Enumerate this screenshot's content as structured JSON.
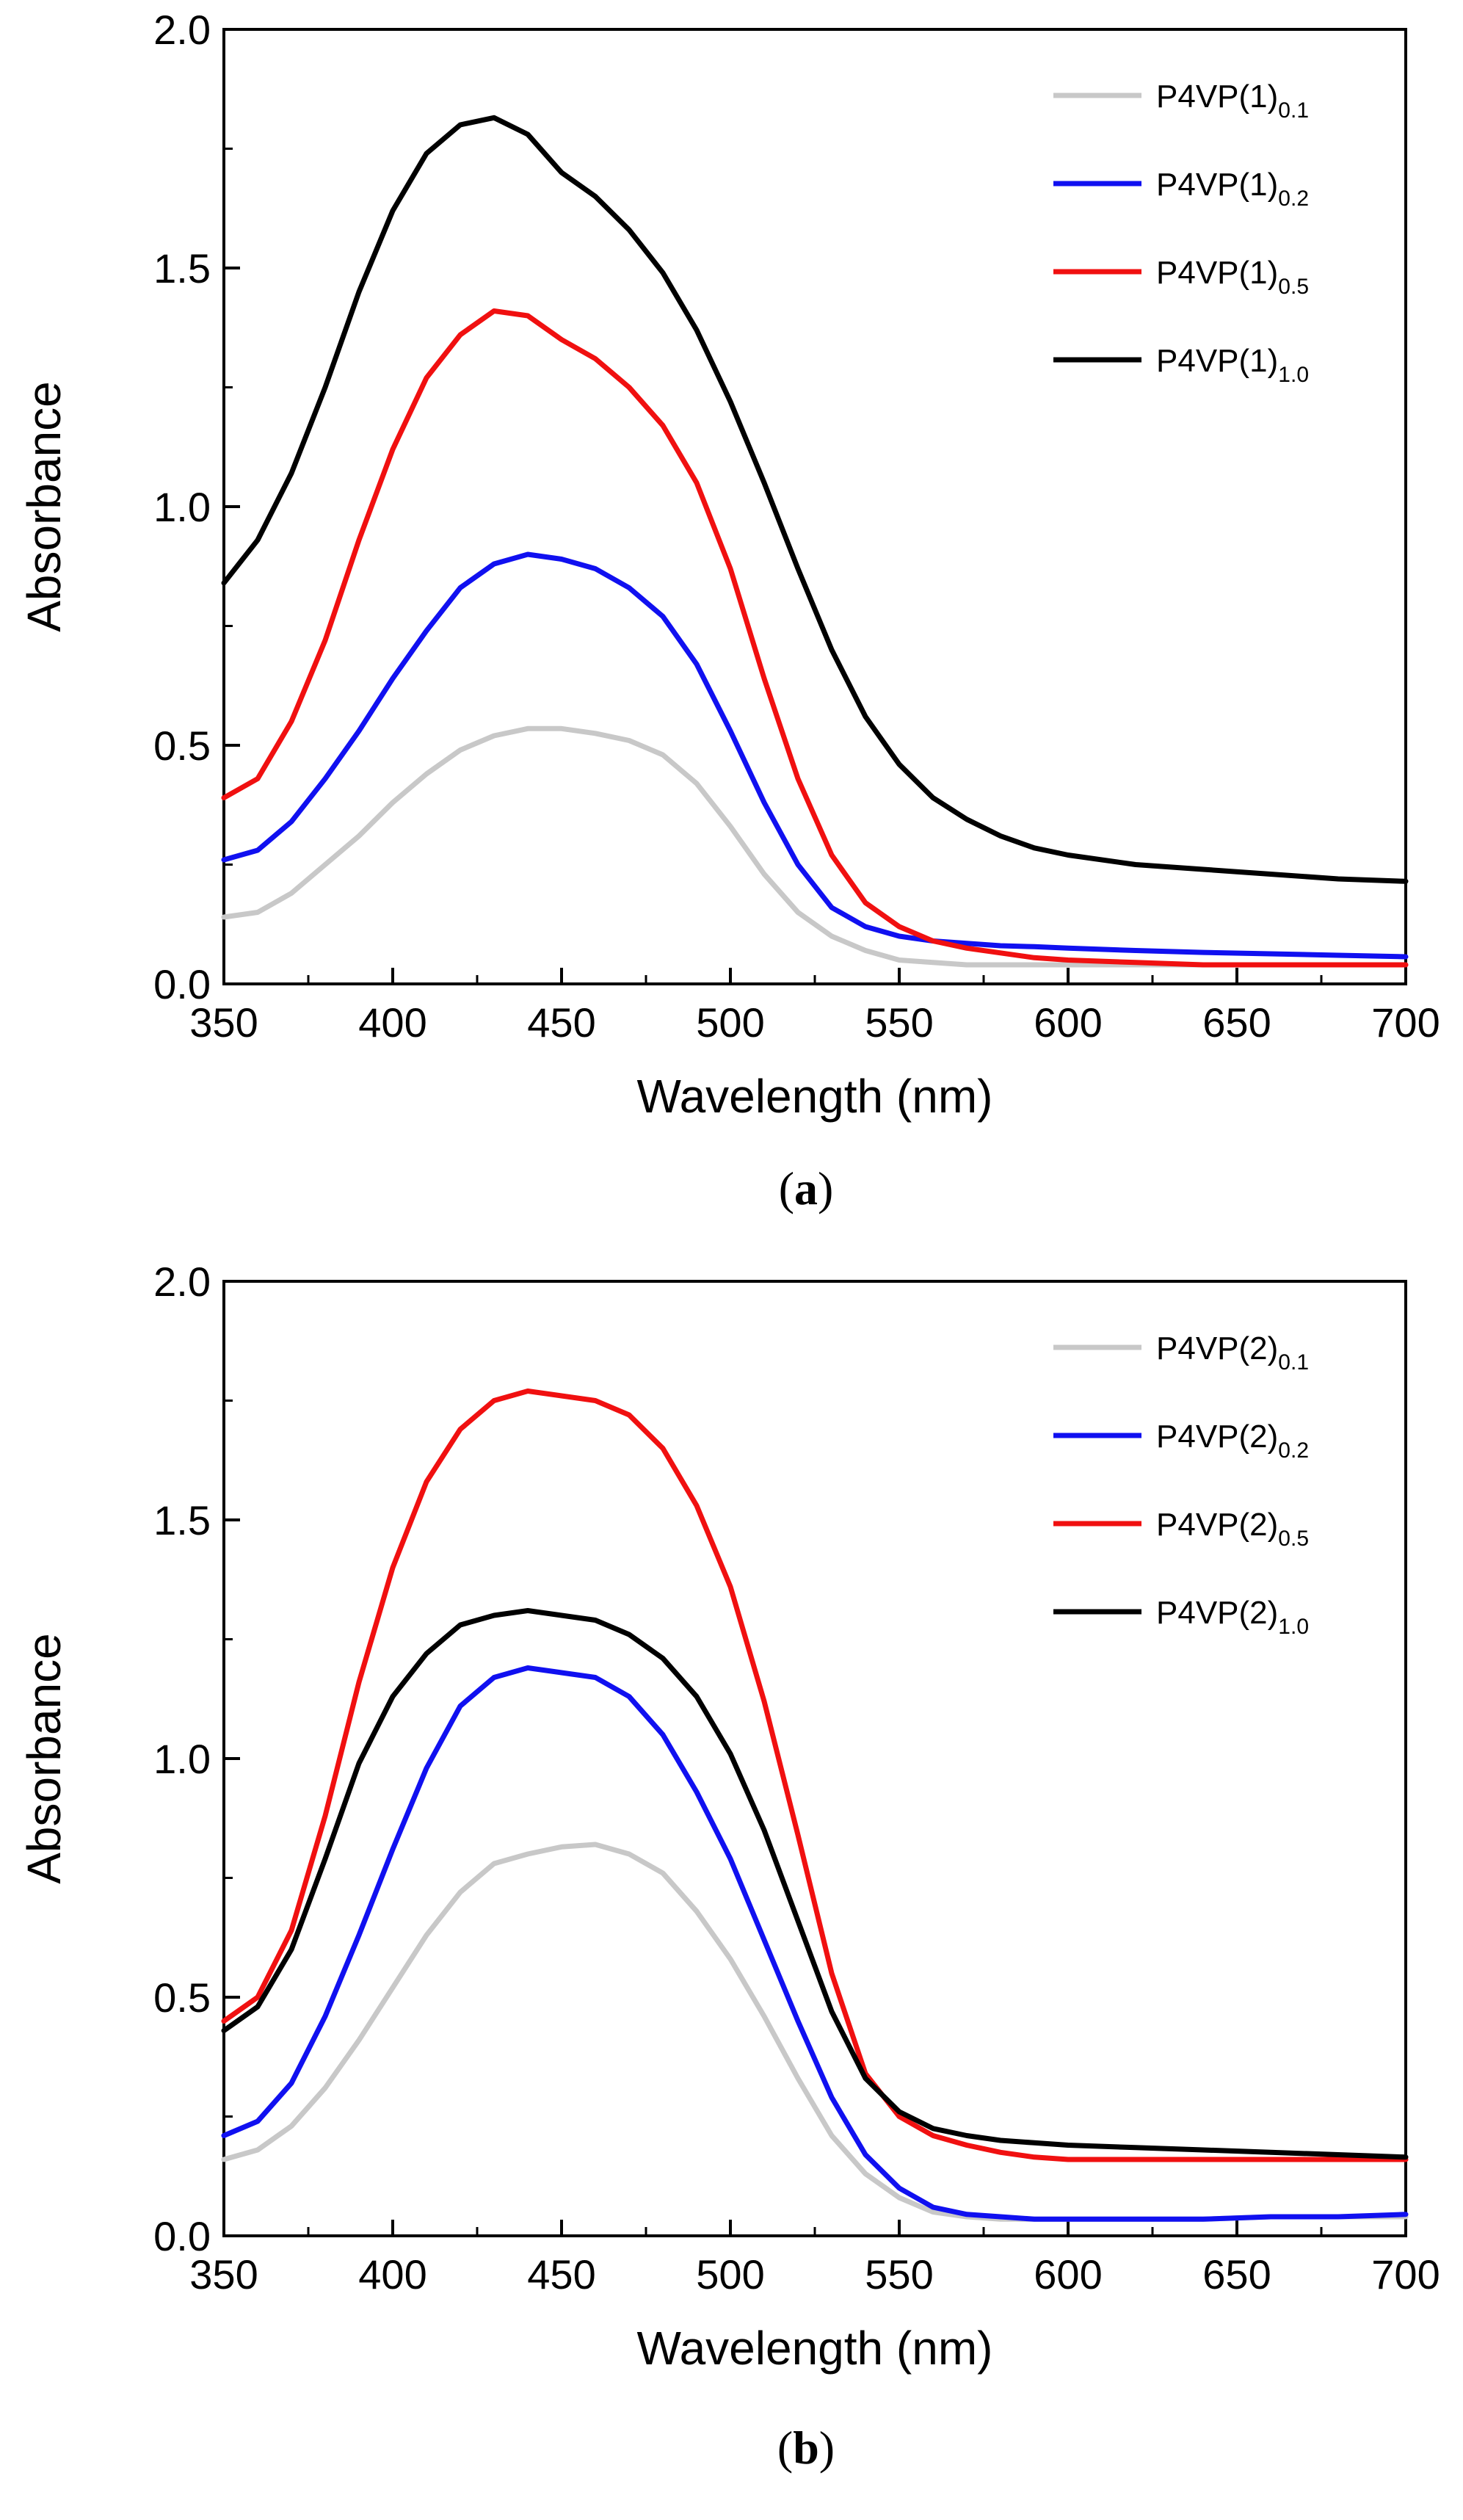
{
  "chart_data": [
    {
      "type": "line",
      "panel_label": "a",
      "xlabel": "Wavelength (nm)",
      "ylabel": "Absorbance",
      "xlim": [
        350,
        700
      ],
      "ylim": [
        0.0,
        2.0
      ],
      "xticks": [
        350,
        400,
        450,
        500,
        550,
        600,
        650,
        700
      ],
      "xtick_labels": [
        "350",
        "400",
        "450",
        "500",
        "550",
        "600",
        "650",
        "700"
      ],
      "yticks": [
        0.0,
        0.5,
        1.0,
        1.5,
        2.0
      ],
      "ytick_labels": [
        "0.0",
        "0.5",
        "1.0",
        "1.5",
        "2.0"
      ],
      "legend_position": "top-right",
      "x": [
        350,
        360,
        370,
        380,
        390,
        400,
        410,
        420,
        430,
        440,
        450,
        460,
        470,
        480,
        490,
        500,
        510,
        520,
        530,
        540,
        550,
        560,
        570,
        580,
        590,
        600,
        620,
        640,
        660,
        680,
        700
      ],
      "series": [
        {
          "name_main": "P4VP(1)",
          "name_sub": "0.1",
          "color": "#c8c8c8",
          "values": [
            0.14,
            0.15,
            0.19,
            0.25,
            0.31,
            0.38,
            0.44,
            0.49,
            0.52,
            0.535,
            0.535,
            0.525,
            0.51,
            0.48,
            0.42,
            0.33,
            0.23,
            0.15,
            0.1,
            0.07,
            0.05,
            0.045,
            0.04,
            0.04,
            0.04,
            0.04,
            0.04,
            0.04,
            0.04,
            0.04,
            0.04
          ]
        },
        {
          "name_main": "P4VP(1)",
          "name_sub": "0.2",
          "color": "#1010f0",
          "values": [
            0.26,
            0.28,
            0.34,
            0.43,
            0.53,
            0.64,
            0.74,
            0.83,
            0.88,
            0.9,
            0.89,
            0.87,
            0.83,
            0.77,
            0.67,
            0.53,
            0.38,
            0.25,
            0.16,
            0.12,
            0.1,
            0.09,
            0.085,
            0.08,
            0.078,
            0.075,
            0.07,
            0.066,
            0.063,
            0.06,
            0.057
          ]
        },
        {
          "name_main": "P4VP(1)",
          "name_sub": "0.5",
          "color": "#f01010",
          "values": [
            0.39,
            0.43,
            0.55,
            0.72,
            0.93,
            1.12,
            1.27,
            1.36,
            1.41,
            1.4,
            1.35,
            1.31,
            1.25,
            1.17,
            1.05,
            0.87,
            0.64,
            0.43,
            0.27,
            0.17,
            0.12,
            0.09,
            0.075,
            0.065,
            0.055,
            0.05,
            0.045,
            0.04,
            0.04,
            0.04,
            0.04
          ]
        },
        {
          "name_main": "P4VP(1)",
          "name_sub": "1.0",
          "color": "#000000",
          "values": [
            0.84,
            0.93,
            1.07,
            1.25,
            1.45,
            1.62,
            1.74,
            1.8,
            1.815,
            1.78,
            1.7,
            1.65,
            1.58,
            1.49,
            1.37,
            1.22,
            1.05,
            0.87,
            0.7,
            0.56,
            0.46,
            0.39,
            0.345,
            0.31,
            0.285,
            0.27,
            0.25,
            0.24,
            0.23,
            0.22,
            0.215
          ]
        }
      ]
    },
    {
      "type": "line",
      "panel_label": "b",
      "xlabel": "Wavelength (nm)",
      "ylabel": "Absorbance",
      "xlim": [
        350,
        700
      ],
      "ylim": [
        0.0,
        2.0
      ],
      "xticks": [
        350,
        400,
        450,
        500,
        550,
        600,
        650,
        700
      ],
      "xtick_labels": [
        "350",
        "400",
        "450",
        "500",
        "550",
        "600",
        "650",
        "700"
      ],
      "yticks": [
        0.0,
        0.5,
        1.0,
        1.5,
        2.0
      ],
      "ytick_labels": [
        "0.0",
        "0.5",
        "1.0",
        "1.5",
        "2.0"
      ],
      "legend_position": "top-right",
      "x": [
        350,
        360,
        370,
        380,
        390,
        400,
        410,
        420,
        430,
        440,
        450,
        460,
        470,
        480,
        490,
        500,
        510,
        520,
        530,
        540,
        550,
        560,
        570,
        580,
        590,
        600,
        620,
        640,
        660,
        680,
        700
      ],
      "series": [
        {
          "name_main": "P4VP(2)",
          "name_sub": "0.1",
          "color": "#c8c8c8",
          "values": [
            0.16,
            0.18,
            0.23,
            0.31,
            0.41,
            0.52,
            0.63,
            0.72,
            0.78,
            0.8,
            0.815,
            0.82,
            0.8,
            0.76,
            0.68,
            0.58,
            0.46,
            0.33,
            0.21,
            0.13,
            0.08,
            0.05,
            0.04,
            0.035,
            0.035,
            0.035,
            0.035,
            0.035,
            0.04,
            0.04,
            0.04
          ]
        },
        {
          "name_main": "P4VP(2)",
          "name_sub": "0.2",
          "color": "#1010f0",
          "values": [
            0.21,
            0.24,
            0.32,
            0.46,
            0.63,
            0.81,
            0.98,
            1.11,
            1.17,
            1.19,
            1.18,
            1.17,
            1.13,
            1.05,
            0.93,
            0.79,
            0.62,
            0.45,
            0.29,
            0.17,
            0.1,
            0.06,
            0.045,
            0.04,
            0.035,
            0.035,
            0.035,
            0.035,
            0.04,
            0.04,
            0.045
          ]
        },
        {
          "name_main": "P4VP(2)",
          "name_sub": "0.5",
          "color": "#f01010",
          "values": [
            0.45,
            0.5,
            0.64,
            0.88,
            1.16,
            1.4,
            1.58,
            1.69,
            1.75,
            1.77,
            1.76,
            1.75,
            1.72,
            1.65,
            1.53,
            1.36,
            1.12,
            0.84,
            0.55,
            0.34,
            0.25,
            0.21,
            0.19,
            0.175,
            0.165,
            0.16,
            0.16,
            0.16,
            0.16,
            0.16,
            0.16
          ]
        },
        {
          "name_main": "P4VP(2)",
          "name_sub": "1.0",
          "color": "#000000",
          "values": [
            0.43,
            0.48,
            0.6,
            0.79,
            0.99,
            1.13,
            1.22,
            1.28,
            1.3,
            1.31,
            1.3,
            1.29,
            1.26,
            1.21,
            1.13,
            1.01,
            0.85,
            0.66,
            0.47,
            0.33,
            0.26,
            0.225,
            0.21,
            0.2,
            0.195,
            0.19,
            0.185,
            0.18,
            0.175,
            0.17,
            0.165
          ]
        }
      ]
    }
  ]
}
